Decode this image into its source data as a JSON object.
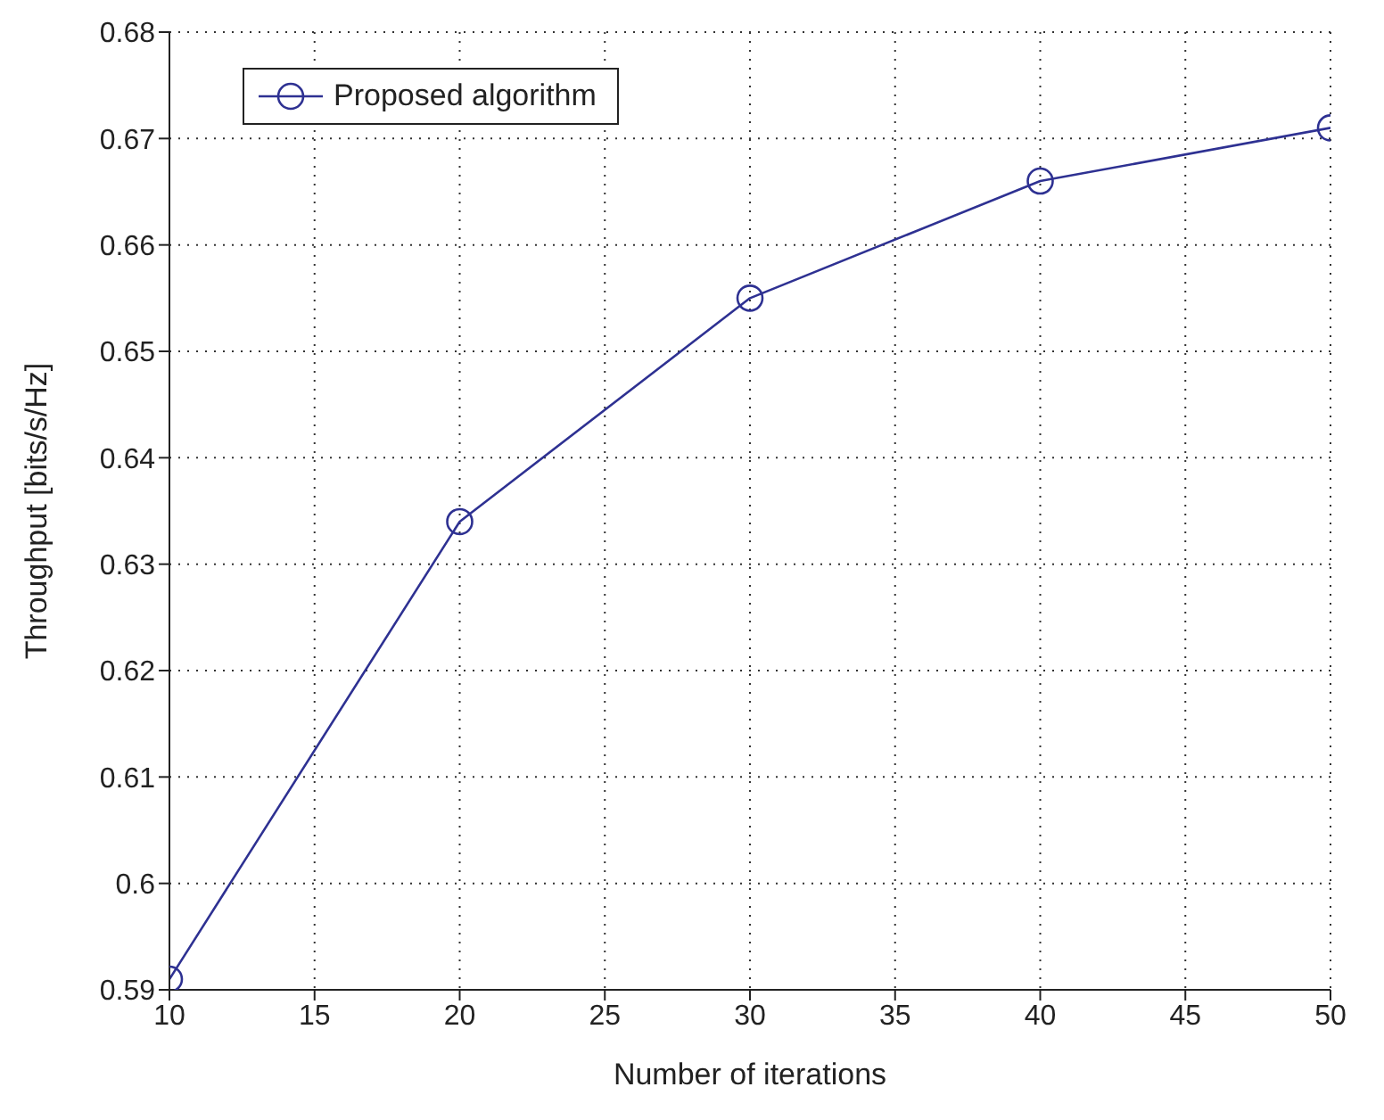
{
  "chart_data": {
    "type": "line",
    "xlabel": "Number of iterations",
    "ylabel": "Throughput [bits/s/Hz]",
    "x": [
      10,
      20,
      30,
      40,
      50
    ],
    "series": [
      {
        "name": "Proposed algorithm",
        "color": "#2e3192",
        "values": [
          0.591,
          0.634,
          0.655,
          0.666,
          0.671
        ]
      }
    ],
    "xlim": [
      10,
      50
    ],
    "xticks": [
      10,
      15,
      20,
      25,
      30,
      35,
      40,
      45,
      50
    ],
    "ylim": [
      0.59,
      0.68
    ],
    "yticks": [
      0.59,
      0.6,
      0.61,
      0.62,
      0.63,
      0.64,
      0.65,
      0.66,
      0.67,
      0.68
    ],
    "grid": true,
    "legend": "top left",
    "marker": "circle",
    "line_style": "solid"
  }
}
